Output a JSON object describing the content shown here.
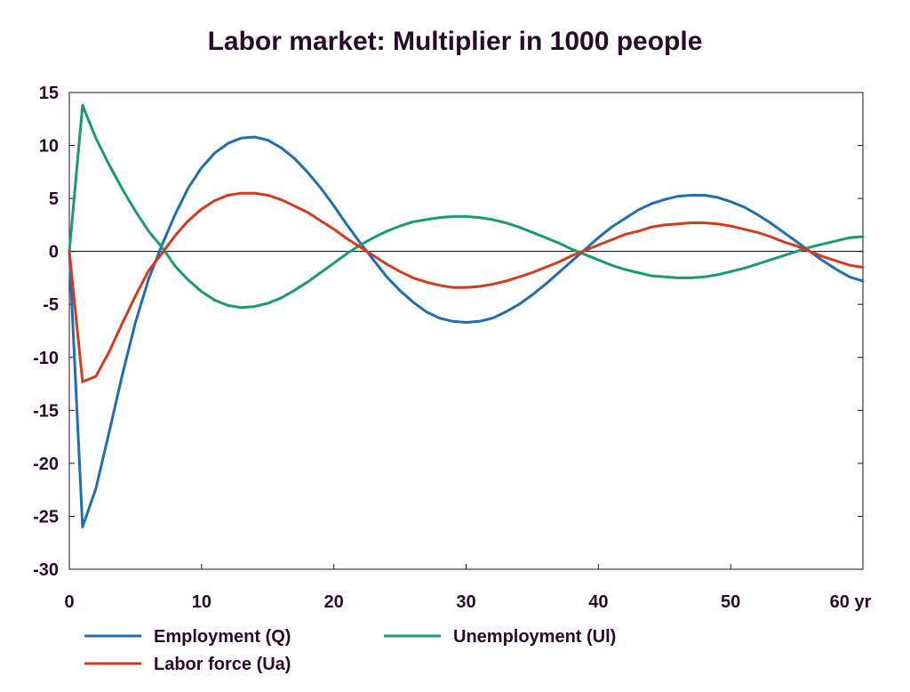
{
  "chart_data": {
    "type": "line",
    "title": "Labor market: Multiplier in 1000 people",
    "xlabel": "",
    "ylabel": "",
    "xlim": [
      0,
      60
    ],
    "ylim": [
      -30,
      15
    ],
    "x_ticks": [
      0,
      10,
      20,
      30,
      40,
      50,
      60
    ],
    "x_tick_labels": [
      "0",
      "10",
      "20",
      "30",
      "40",
      "50",
      "60 yr"
    ],
    "y_ticks": [
      15,
      10,
      5,
      0,
      -5,
      -10,
      -15,
      -20,
      -25,
      -30
    ],
    "y_tick_labels": [
      "15",
      "10",
      "5",
      "0",
      "-5",
      "-10",
      "-15",
      "-20",
      "-25",
      "-30"
    ],
    "grid": false,
    "zero_line": true,
    "legend_position": "bottom",
    "x": [
      0,
      1,
      2,
      3,
      4,
      5,
      6,
      7,
      8,
      9,
      10,
      11,
      12,
      13,
      14,
      15,
      16,
      17,
      18,
      19,
      20,
      21,
      22,
      23,
      24,
      25,
      26,
      27,
      28,
      29,
      30,
      31,
      32,
      33,
      34,
      35,
      36,
      37,
      38,
      39,
      40,
      41,
      42,
      43,
      44,
      45,
      46,
      47,
      48,
      49,
      50,
      51,
      52,
      53,
      54,
      55,
      56,
      57,
      58,
      59,
      60
    ],
    "series": [
      {
        "name": "Employment (Q)",
        "color": "#1f6fb0",
        "values": [
          0,
          -26.0,
          -22.4,
          -17.1,
          -11.7,
          -6.7,
          -2.6,
          0.6,
          3.5,
          6.0,
          7.9,
          9.3,
          10.2,
          10.7,
          10.8,
          10.5,
          9.8,
          8.8,
          7.5,
          6.0,
          4.3,
          2.5,
          0.8,
          -0.8,
          -2.4,
          -3.7,
          -4.8,
          -5.7,
          -6.3,
          -6.6,
          -6.7,
          -6.6,
          -6.3,
          -5.7,
          -5.0,
          -4.1,
          -3.1,
          -2.0,
          -0.9,
          0.2,
          1.3,
          2.3,
          3.1,
          3.9,
          4.5,
          4.9,
          5.2,
          5.3,
          5.3,
          5.1,
          4.7,
          4.2,
          3.5,
          2.7,
          1.8,
          0.9,
          0.0,
          -0.9,
          -1.7,
          -2.4,
          -2.8
        ]
      },
      {
        "name": "Unemployment (Ul)",
        "color": "#1a9a72",
        "values": [
          0,
          13.8,
          10.7,
          8.2,
          5.9,
          3.8,
          1.9,
          0.4,
          -1.4,
          -2.7,
          -3.8,
          -4.6,
          -5.1,
          -5.3,
          -5.2,
          -4.9,
          -4.4,
          -3.7,
          -2.9,
          -2.0,
          -1.1,
          -0.2,
          0.6,
          1.3,
          1.9,
          2.4,
          2.8,
          3.0,
          3.2,
          3.3,
          3.3,
          3.2,
          3.0,
          2.7,
          2.3,
          1.8,
          1.3,
          0.8,
          0.2,
          -0.3,
          -0.8,
          -1.3,
          -1.7,
          -2.0,
          -2.3,
          -2.4,
          -2.5,
          -2.5,
          -2.4,
          -2.2,
          -1.9,
          -1.6,
          -1.2,
          -0.8,
          -0.4,
          0.0,
          0.4,
          0.7,
          1.0,
          1.3,
          1.4
        ]
      },
      {
        "name": "Labor force (Ua)",
        "color": "#d63a1e",
        "values": [
          0,
          -12.3,
          -11.8,
          -9.5,
          -6.8,
          -4.2,
          -1.8,
          -0.2,
          1.5,
          2.9,
          4.0,
          4.8,
          5.3,
          5.5,
          5.5,
          5.3,
          4.9,
          4.3,
          3.7,
          2.9,
          2.1,
          1.2,
          0.4,
          -0.4,
          -1.2,
          -1.9,
          -2.5,
          -2.9,
          -3.2,
          -3.4,
          -3.4,
          -3.3,
          -3.1,
          -2.8,
          -2.4,
          -2.0,
          -1.5,
          -1.0,
          -0.4,
          0.1,
          0.6,
          1.1,
          1.6,
          1.9,
          2.3,
          2.5,
          2.6,
          2.7,
          2.7,
          2.6,
          2.4,
          2.1,
          1.8,
          1.4,
          0.9,
          0.5,
          0.0,
          -0.5,
          -0.9,
          -1.3,
          -1.5
        ]
      }
    ]
  }
}
